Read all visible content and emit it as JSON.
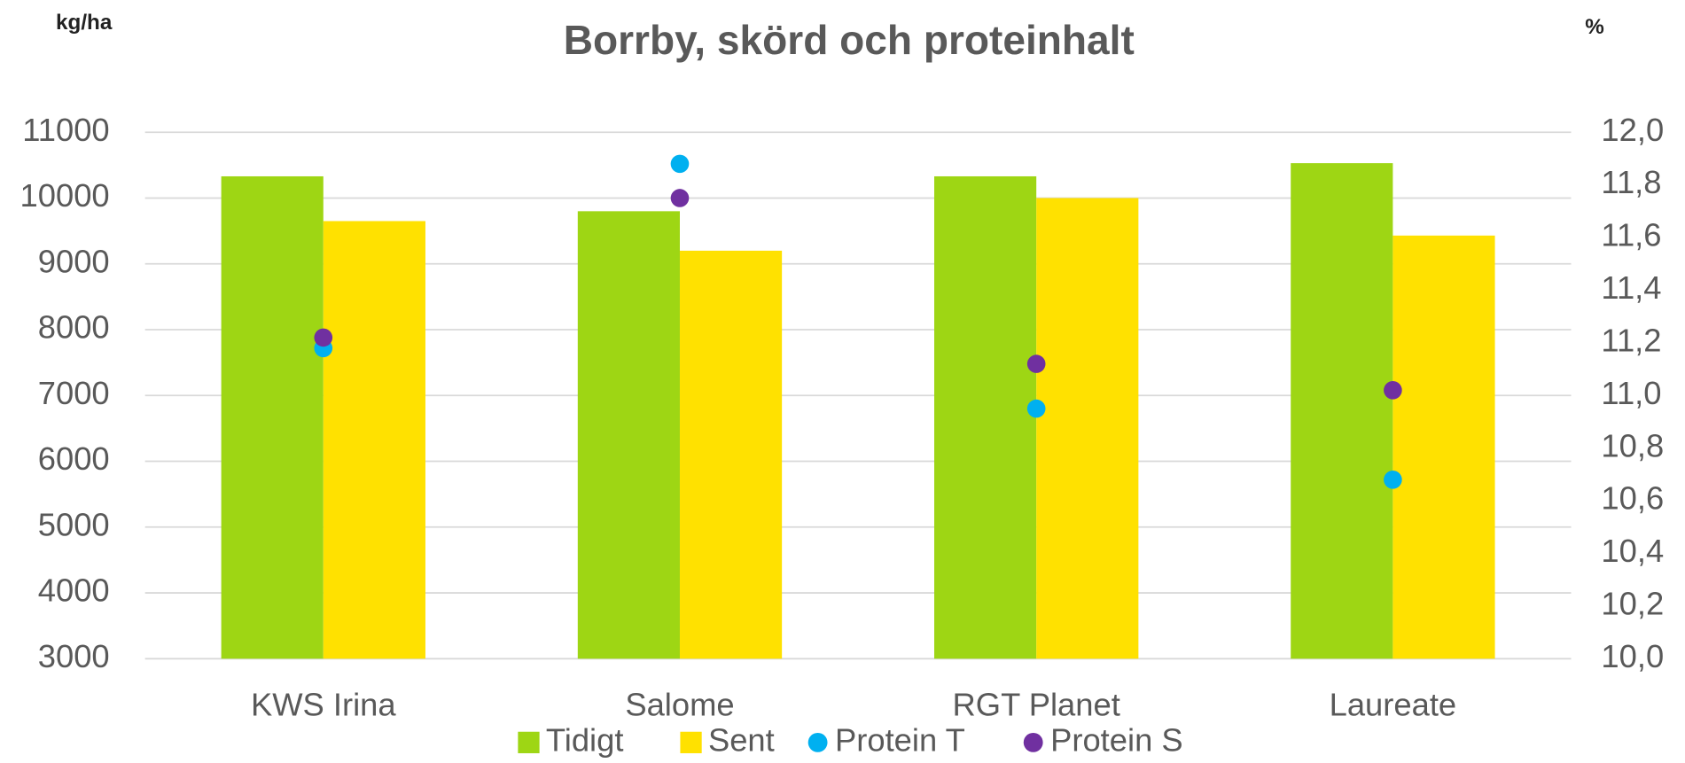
{
  "chart_data": {
    "type": "bar",
    "title": "Borrby, skörd och proteinhalt",
    "y_label": "kg/ha",
    "y2_label": "%",
    "categories": [
      "KWS Irina",
      "Salome",
      "RGT Planet",
      "Laureate"
    ],
    "series": [
      {
        "name": "Tidigt",
        "type": "bar",
        "color": "#9ed614",
        "values": [
          10330,
          9800,
          10330,
          10530
        ]
      },
      {
        "name": "Sent",
        "type": "bar",
        "color": "#ffe100",
        "values": [
          9650,
          9200,
          10000,
          9430
        ]
      },
      {
        "name": "Protein T",
        "type": "scatter",
        "axis": "y2",
        "color": "#00b0f0",
        "values": [
          11.18,
          11.88,
          10.95,
          10.68
        ]
      },
      {
        "name": "Protein S",
        "type": "scatter",
        "axis": "y2",
        "color": "#7030a0",
        "values": [
          11.22,
          11.75,
          11.12,
          11.02
        ]
      }
    ],
    "ylim": [
      3000,
      11000
    ],
    "yticks": [
      3000,
      4000,
      5000,
      6000,
      7000,
      8000,
      9000,
      10000,
      11000
    ],
    "y2lim": [
      10,
      12
    ],
    "y2ticks": [
      {
        "value": 10,
        "label": "10,0"
      },
      {
        "value": 10.2,
        "label": "10,2"
      },
      {
        "value": 10.4,
        "label": "10,4"
      },
      {
        "value": 10.6,
        "label": "10,6"
      },
      {
        "value": 10.8,
        "label": "10,8"
      },
      {
        "value": 11,
        "label": "11,0"
      },
      {
        "value": 11.2,
        "label": "11,2"
      },
      {
        "value": 11.4,
        "label": "11,4"
      },
      {
        "value": 11.6,
        "label": "11,6"
      },
      {
        "value": 11.8,
        "label": "11,8"
      },
      {
        "value": 12,
        "label": "12,0"
      }
    ],
    "grid": true,
    "legend": "bottom"
  }
}
